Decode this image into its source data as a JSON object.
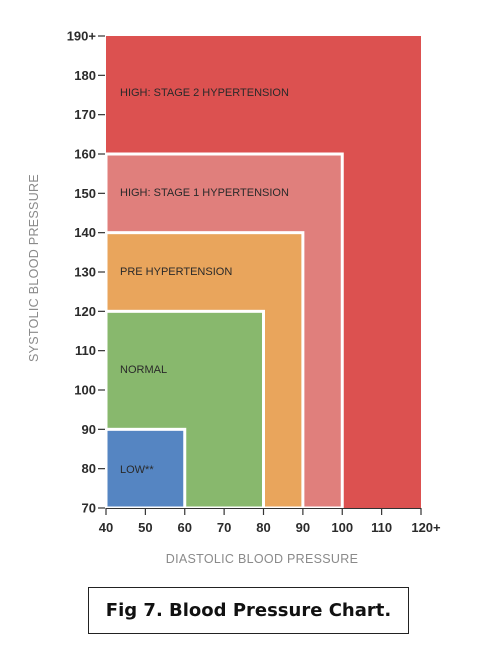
{
  "chart_data": {
    "type": "area",
    "xlabel": "DIASTOLIC BLOOD PRESSURE",
    "ylabel": "SYSTOLIC BLOOD PRESSURE",
    "xlim": [
      40,
      120
    ],
    "ylim": [
      70,
      190
    ],
    "x_ticks": [
      "40",
      "50",
      "60",
      "70",
      "80",
      "90",
      "100",
      "110",
      "120+"
    ],
    "y_ticks": [
      "70",
      "80",
      "90",
      "100",
      "110",
      "120",
      "130",
      "140",
      "150",
      "160",
      "170",
      "180",
      "190+"
    ],
    "zones": [
      {
        "name": "HIGH: STAGE 2 HYPERTENSION",
        "x_max": 120,
        "y_max": 190,
        "color": "#dc5150"
      },
      {
        "name": "HIGH: STAGE 1 HYPERTENSION",
        "x_max": 100,
        "y_max": 160,
        "color": "#e07f7c"
      },
      {
        "name": "PRE HYPERTENSION",
        "x_max": 90,
        "y_max": 140,
        "color": "#e9a55c"
      },
      {
        "name": "NORMAL",
        "x_max": 80,
        "y_max": 120,
        "color": "#88b86d"
      },
      {
        "name": "LOW**",
        "x_max": 60,
        "y_max": 90,
        "color": "#5585c2"
      }
    ]
  },
  "caption": "Fig 7. Blood Pressure Chart."
}
